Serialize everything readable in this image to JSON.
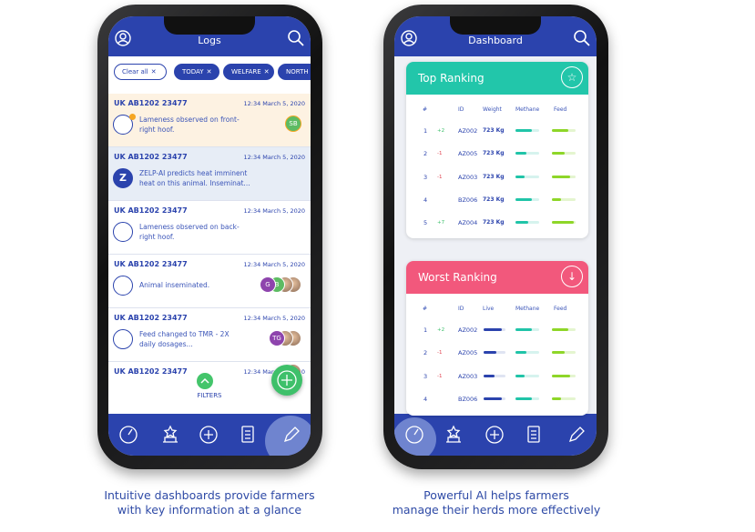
{
  "left_phone": {
    "header": {
      "title": "Logs"
    },
    "filters": [
      "Clear all",
      "TODAY",
      "WELFARE",
      "NORTH D"
    ],
    "logs": [
      {
        "id": "UK AB1202 23477",
        "time": "12:34 March 5, 2020",
        "lines": [
          "Lameness observed on front-",
          "right hoof."
        ],
        "avatars": [
          "SB"
        ]
      },
      {
        "id": "UK AB1202 23477",
        "time": "12:34 March 5, 2020",
        "icon_text": "Z",
        "lines": [
          "ZELP-AI predicts heat imminent",
          "heat on this animal. Inseminat..."
        ]
      },
      {
        "id": "UK AB1202 23477",
        "time": "12:34 March 5, 2020",
        "lines": [
          "Lameness observed on back-",
          "right hoof."
        ]
      },
      {
        "id": "UK AB1202 23477",
        "time": "12:34 March 5, 2020",
        "lines": [
          "Animal inseminated."
        ],
        "avatars": [
          "G",
          "B"
        ]
      },
      {
        "id": "UK AB1202 23477",
        "time": "12:34 March 5, 2020",
        "lines": [
          "Feed changed to TMR - 2X",
          "daily dosages..."
        ],
        "avatars": [
          "TG"
        ]
      },
      {
        "id": "UK AB1202 23477",
        "time": "12:34 March 5, 2020",
        "lines": []
      }
    ],
    "filters_button": "FILTERS"
  },
  "right_phone": {
    "header": {
      "title": "Dashboard"
    },
    "top_ranking": {
      "title": "Top Ranking",
      "columns": [
        "#",
        "ID",
        "Weight",
        "Methane",
        "Feed"
      ],
      "rows": [
        {
          "rank": 1,
          "change": "+2",
          "id": "AZ002",
          "weight": "723 Kg"
        },
        {
          "rank": 2,
          "change": "-1",
          "id": "AZ005",
          "weight": "723 Kg"
        },
        {
          "rank": 3,
          "change": "-1",
          "id": "AZ003",
          "weight": "723 Kg"
        },
        {
          "rank": 4,
          "id": "BZ006",
          "weight": "723 Kg"
        },
        {
          "rank": 5,
          "change": "+7",
          "id": "AZ004",
          "weight": "723 Kg"
        }
      ]
    },
    "worst_ranking": {
      "title": "Worst Ranking",
      "columns": [
        "#",
        "ID",
        "Live",
        "Methane",
        "Feed"
      ],
      "rows": [
        {
          "rank": 1,
          "change": "+2",
          "id": "AZ002"
        },
        {
          "rank": 2,
          "change": "-1",
          "id": "AZ005"
        },
        {
          "rank": 3,
          "change": "-1",
          "id": "AZ003"
        },
        {
          "rank": 4,
          "id": "BZ006"
        }
      ]
    }
  },
  "captions": [
    [
      "Intuitive dashboards provide farmers",
      "with key information at a glance"
    ],
    [
      "Powerful AI helps farmers",
      "manage their herds more effectively"
    ]
  ]
}
